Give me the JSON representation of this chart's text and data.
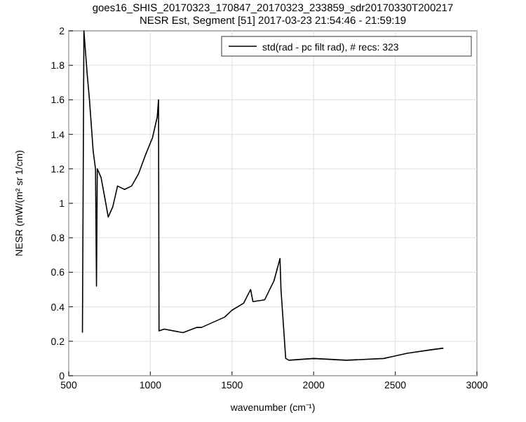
{
  "chart_data": {
    "type": "line",
    "title": "goes16_SHIS_20170323_170847_20170323_233859_sdr20170330T200217",
    "subtitle": "NESR Est, Segment [51] 2017-03-23 21:54:46 - 21:59:19",
    "xlabel": "wavenumber (cm⁻¹)",
    "ylabel": "NESR (mW/(m² sr 1/cm)",
    "xlim": [
      500,
      3000
    ],
    "ylim": [
      0,
      2
    ],
    "xticks": [
      500,
      1000,
      1500,
      2000,
      2500,
      3000
    ],
    "yticks": [
      0,
      0.2,
      0.4,
      0.6,
      0.8,
      1,
      {
        "value": 1.2,
        "label": "1.2"
      },
      {
        "value": 1.4,
        "label": "1.4"
      },
      {
        "value": 1.6,
        "label": "1.6"
      },
      {
        "value": 1.8,
        "label": "1.8"
      },
      2
    ],
    "grid": true,
    "legend": "top right",
    "series": [
      {
        "name": "std(rad - pc filt rad), # recs:  323",
        "color": "#000000",
        "x": [
          584,
          593,
          613,
          627,
          650,
          664,
          670,
          675,
          698,
          727,
          742,
          770,
          799,
          842,
          885,
          927,
          970,
          1013,
          1042,
          1050,
          1053,
          1085,
          1200,
          1285,
          1313,
          1455,
          1500,
          1571,
          1614,
          1628,
          1700,
          1757,
          1794,
          1800,
          1829,
          1849,
          2000,
          2200,
          2429,
          2572,
          2715,
          2795
        ],
        "values": [
          0.25,
          2,
          1.75,
          1.6,
          1.3,
          1.2,
          0.52,
          1.2,
          1.15,
          1,
          0.92,
          0.98,
          1.1,
          1.08,
          1.1,
          1.17,
          1.28,
          1.38,
          1.5,
          1.6,
          0.26,
          0.27,
          0.25,
          0.28,
          0.28,
          0.34,
          0.38,
          0.42,
          0.5,
          0.43,
          0.44,
          0.55,
          0.68,
          0.5,
          0.1,
          0.09,
          0.1,
          0.09,
          0.1,
          0.13,
          0.15,
          0.16
        ]
      }
    ]
  }
}
